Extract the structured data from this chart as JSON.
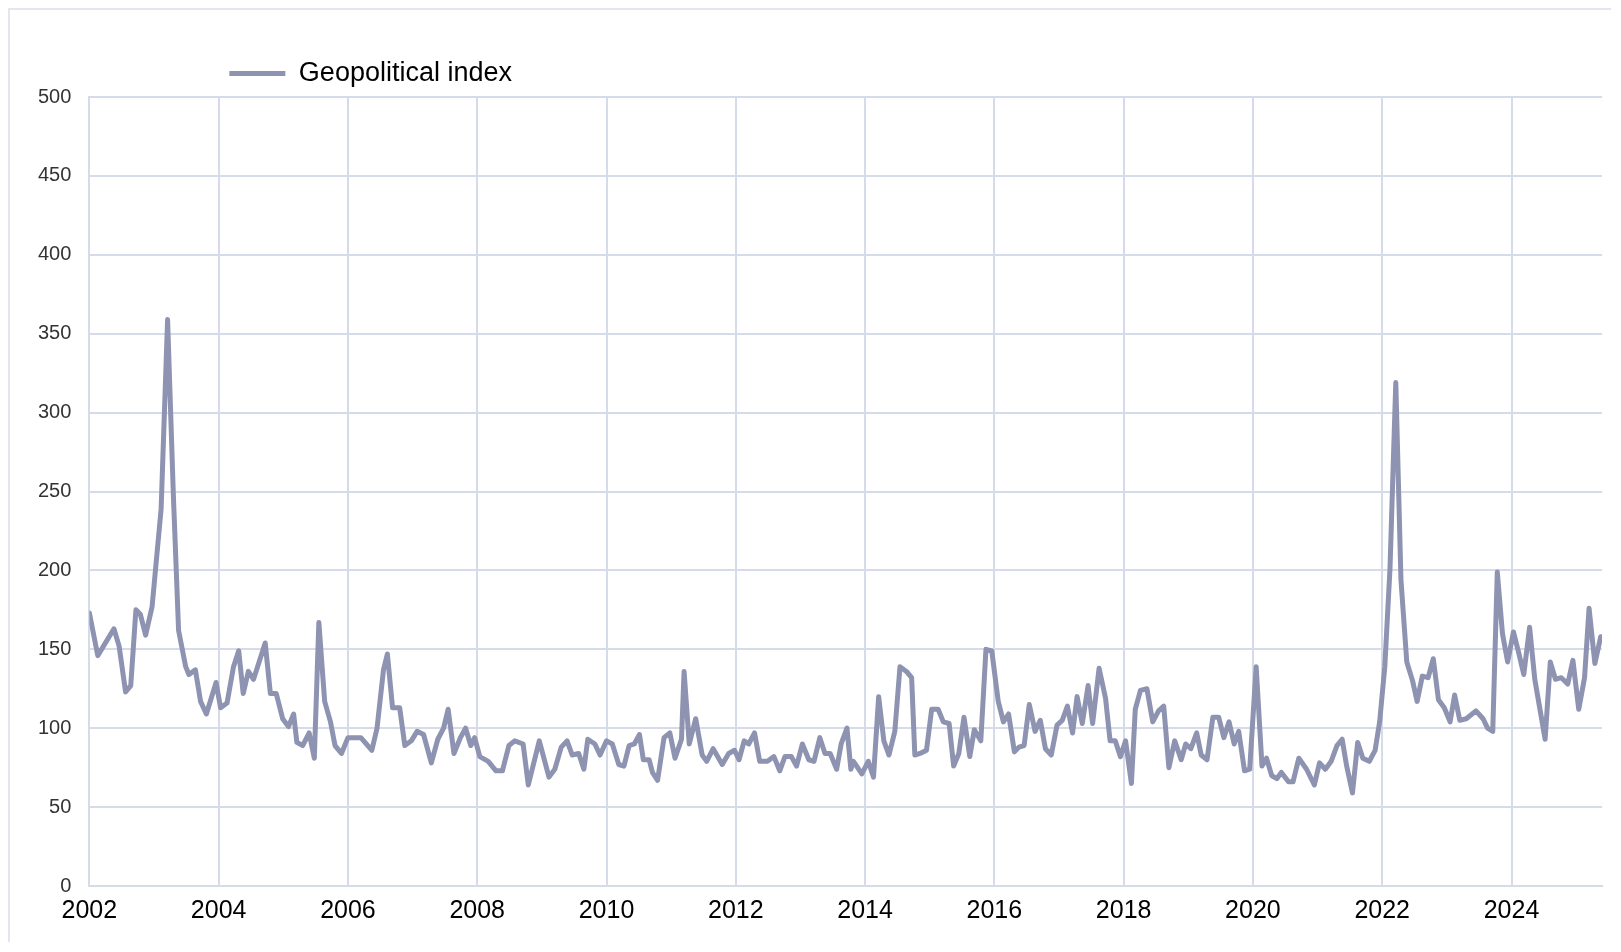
{
  "chart_data": {
    "type": "line",
    "xlim": [
      2002,
      2025.4
    ],
    "xticks": [
      2002,
      2004,
      2006,
      2008,
      2010,
      2012,
      2014,
      2016,
      2018,
      2020,
      2022,
      2024
    ],
    "ylim": [
      0,
      500
    ],
    "yticks": [
      0,
      50,
      100,
      150,
      200,
      250,
      300,
      350,
      400,
      450,
      500
    ],
    "grid": true,
    "legend": "top left",
    "marker": "none",
    "line_style": "solid",
    "series": [
      {
        "name": "Geopolitical index",
        "color": "#8d93b0",
        "x": [
          2002.0,
          2002.13,
          2002.38,
          2002.46,
          2002.56,
          2002.64,
          2002.72,
          2002.79,
          2002.87,
          2002.97,
          2003.11,
          2003.21,
          2003.3,
          2003.38,
          2003.49,
          2003.54,
          2003.64,
          2003.72,
          2003.81,
          2003.96,
          2004.03,
          2004.13,
          2004.23,
          2004.31,
          2004.38,
          2004.46,
          2004.54,
          2004.72,
          2004.8,
          2004.89,
          2004.99,
          2005.08,
          2005.16,
          2005.21,
          2005.3,
          2005.4,
          2005.48,
          2005.55,
          2005.64,
          2005.73,
          2005.8,
          2005.9,
          2006.0,
          2006.09,
          2006.2,
          2006.37,
          2006.45,
          2006.55,
          2006.61,
          2006.69,
          2006.8,
          2006.88,
          2006.98,
          2007.07,
          2007.17,
          2007.29,
          2007.39,
          2007.48,
          2007.55,
          2007.64,
          2007.74,
          2007.82,
          2007.9,
          2007.96,
          2008.04,
          2008.17,
          2008.29,
          2008.39,
          2008.49,
          2008.58,
          2008.71,
          2008.79,
          2008.96,
          2009.11,
          2009.2,
          2009.3,
          2009.39,
          2009.47,
          2009.57,
          2009.65,
          2009.71,
          2009.82,
          2009.9,
          2010.0,
          2010.09,
          2010.19,
          2010.27,
          2010.35,
          2010.43,
          2010.51,
          2010.57,
          2010.66,
          2010.71,
          2010.79,
          2010.89,
          2010.98,
          2011.06,
          2011.16,
          2011.2,
          2011.28,
          2011.38,
          2011.48,
          2011.55,
          2011.65,
          2011.79,
          2011.89,
          2011.98,
          2012.05,
          2012.13,
          2012.2,
          2012.29,
          2012.37,
          2012.49,
          2012.59,
          2012.68,
          2012.76,
          2012.86,
          2012.94,
          2013.03,
          2013.13,
          2013.21,
          2013.3,
          2013.38,
          2013.46,
          2013.56,
          2013.63,
          2013.72,
          2013.78,
          2013.82,
          2013.95,
          2014.05,
          2014.13,
          2014.21,
          2014.29,
          2014.37,
          2014.46,
          2014.54,
          2014.64,
          2014.72,
          2014.77,
          2014.85,
          2014.95,
          2015.03,
          2015.13,
          2015.21,
          2015.3,
          2015.37,
          2015.45,
          2015.53,
          2015.62,
          2015.69,
          2015.79,
          2015.87,
          2015.96,
          2016.06,
          2016.14,
          2016.22,
          2016.31,
          2016.38,
          2016.46,
          2016.54,
          2016.63,
          2016.71,
          2016.79,
          2016.88,
          2016.97,
          2017.05,
          2017.13,
          2017.21,
          2017.28,
          2017.36,
          2017.45,
          2017.52,
          2017.62,
          2017.72,
          2017.79,
          2017.87,
          2017.95,
          2018.03,
          2018.12,
          2018.18,
          2018.26,
          2018.36,
          2018.45,
          2018.54,
          2018.62,
          2018.7,
          2018.79,
          2018.89,
          2018.96,
          2019.04,
          2019.13,
          2019.2,
          2019.29,
          2019.38,
          2019.47,
          2019.55,
          2019.63,
          2019.71,
          2019.78,
          2019.87,
          2019.95,
          2020.05,
          2020.14,
          2020.21,
          2020.29,
          2020.37,
          2020.44,
          2020.55,
          2020.62,
          2020.71,
          2020.83,
          2020.95,
          2021.03,
          2021.12,
          2021.21,
          2021.3,
          2021.38,
          2021.45,
          2021.54,
          2021.62,
          2021.7,
          2021.8,
          2021.89,
          2021.96,
          2022.04,
          2022.12,
          2022.21,
          2022.29,
          2022.38,
          2022.47,
          2022.54,
          2022.62,
          2022.71,
          2022.79,
          2022.87,
          2022.96,
          2023.05,
          2023.12,
          2023.2,
          2023.3,
          2023.45,
          2023.56,
          2023.63,
          2023.71,
          2023.78,
          2023.86,
          2023.94,
          2024.03,
          2024.11,
          2024.19,
          2024.28,
          2024.36,
          2024.44,
          2024.52,
          2024.6,
          2024.68,
          2024.77,
          2024.87,
          2024.95,
          2025.04,
          2025.13,
          2025.2,
          2025.29,
          2025.38
        ],
        "values": [
          173,
          146,
          163,
          152,
          123,
          127,
          175,
          172,
          159,
          177,
          239,
          359,
          247,
          162,
          139,
          134,
          137,
          117,
          109,
          129,
          113,
          116,
          139,
          149,
          122,
          136,
          131,
          154,
          122,
          122,
          106,
          101,
          109,
          91,
          89,
          97,
          81,
          167,
          117,
          104,
          89,
          84,
          94,
          94,
          94,
          86,
          100,
          137,
          147,
          113,
          113,
          89,
          92,
          98,
          96,
          78,
          93,
          100,
          112,
          84,
          94,
          100,
          89,
          94,
          82,
          79,
          73,
          73,
          89,
          92,
          90,
          64,
          92,
          69,
          74,
          88,
          92,
          83,
          84,
          74,
          93,
          90,
          83,
          92,
          90,
          77,
          76,
          89,
          90,
          96,
          80,
          80,
          72,
          67,
          94,
          97,
          81,
          93,
          136,
          90,
          106,
          83,
          79,
          87,
          77,
          84,
          86,
          80,
          92,
          90,
          97,
          79,
          79,
          82,
          73,
          82,
          82,
          76,
          90,
          80,
          79,
          94,
          84,
          84,
          74,
          90,
          100,
          74,
          79,
          71,
          79,
          69,
          120,
          92,
          83,
          98,
          139,
          136,
          132,
          83,
          84,
          86,
          112,
          112,
          104,
          103,
          76,
          84,
          107,
          82,
          99,
          92,
          150,
          149,
          117,
          104,
          109,
          85,
          88,
          89,
          115,
          98,
          105,
          87,
          83,
          102,
          105,
          114,
          97,
          120,
          103,
          127,
          103,
          138,
          119,
          92,
          92,
          82,
          92,
          65,
          112,
          124,
          125,
          104,
          111,
          114,
          75,
          92,
          80,
          90,
          87,
          97,
          83,
          80,
          107,
          107,
          94,
          104,
          90,
          98,
          73,
          74,
          139,
          76,
          81,
          70,
          68,
          72,
          66,
          66,
          81,
          74,
          64,
          78,
          74,
          79,
          89,
          93,
          76,
          59,
          91,
          81,
          79,
          86,
          104,
          139,
          201,
          319,
          194,
          142,
          130,
          117,
          133,
          132,
          144,
          118,
          113,
          104,
          121,
          105,
          106,
          111,
          106,
          100,
          98,
          199,
          160,
          142,
          161,
          148,
          134,
          164,
          131,
          112,
          93,
          142,
          131,
          132,
          128,
          143,
          112,
          132,
          176,
          141,
          158
        ]
      }
    ]
  }
}
